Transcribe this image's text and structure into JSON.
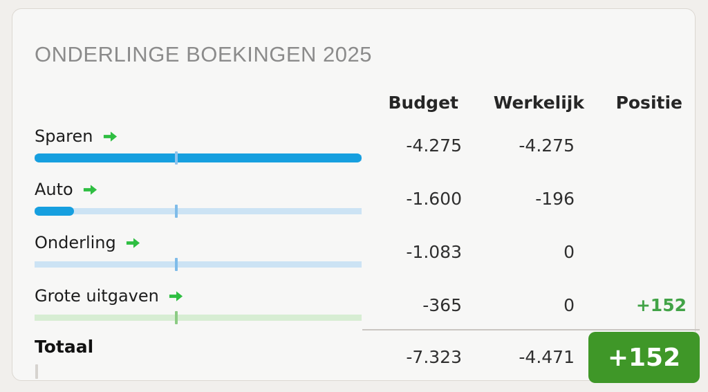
{
  "title": "ONDERLINGE BOEKINGEN 2025",
  "columns": {
    "budget": "Budget",
    "werkelijk": "Werkelijk",
    "positie": "Positie"
  },
  "rows": [
    {
      "label": "Sparen",
      "budget": "-4.275",
      "werkelijk": "-4.275",
      "positie": "",
      "bar": {
        "fill_pct": 100,
        "tick_pct": 43.3,
        "fill_color": "#169fdf",
        "track_color": "#cce3f4",
        "tick_color": "#8fc3ec"
      }
    },
    {
      "label": "Auto",
      "budget": "-1.600",
      "werkelijk": "-196",
      "positie": "",
      "bar": {
        "fill_pct": 12,
        "tick_pct": 43.3,
        "fill_color": "#169fdf",
        "track_color": "#cce3f4",
        "tick_color": "#7fbce9"
      }
    },
    {
      "label": "Onderling",
      "budget": "-1.083",
      "werkelijk": "0",
      "positie": "",
      "bar": {
        "fill_pct": 0,
        "tick_pct": 43.3,
        "fill_color": "#169fdf",
        "track_color": "#cce3f4",
        "tick_color": "#7fbce9"
      }
    },
    {
      "label": "Grote uitgaven",
      "budget": "-365",
      "werkelijk": "0",
      "positie": "+152",
      "bar": {
        "fill_pct": 0,
        "tick_pct": 43.3,
        "fill_color": "#2ebe41",
        "track_color": "#d7edd3",
        "tick_color": "#8ccb84"
      }
    }
  ],
  "total": {
    "label": "Totaal",
    "budget": "-7.323",
    "werkelijk": "-4.471",
    "badge": "+152"
  },
  "colors": {
    "arrow": "#2ebe41",
    "positive": "#42a347",
    "badge_bg": "#3f9728",
    "badge_text": "#ffffff"
  }
}
